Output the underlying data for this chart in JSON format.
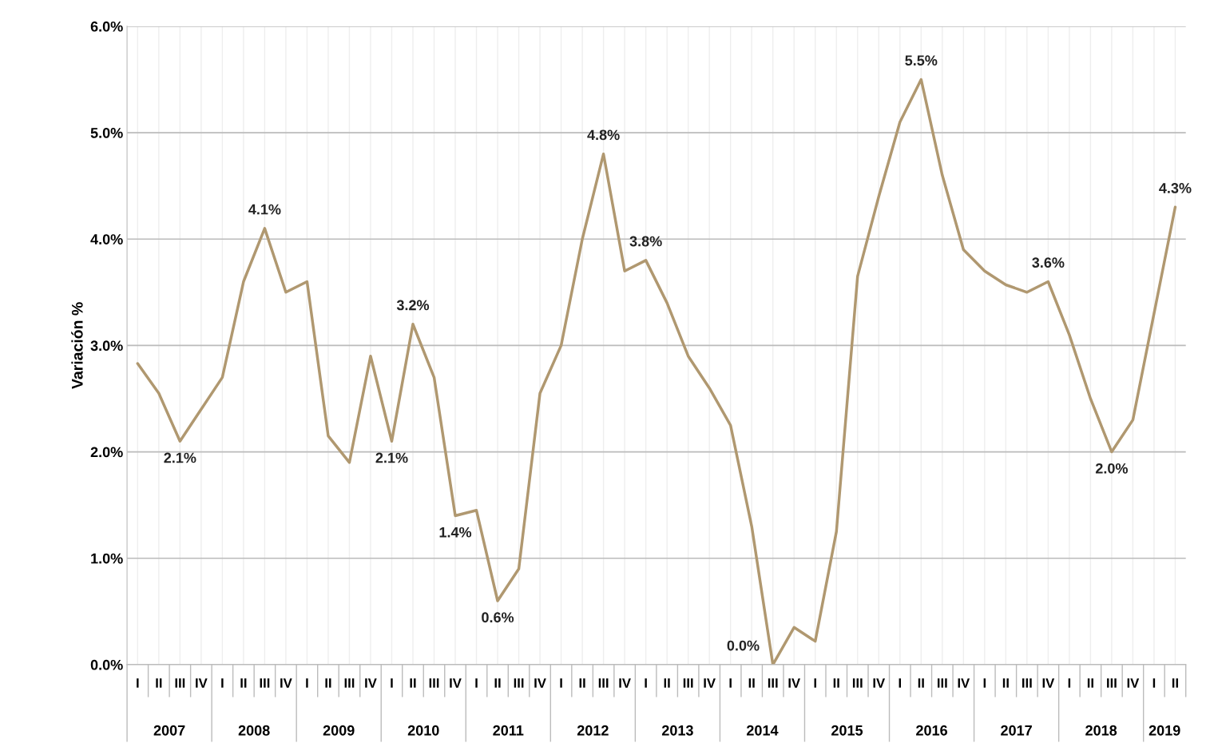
{
  "chart_data": {
    "type": "line",
    "ylabel": "Variación %",
    "categories": [
      "I",
      "II",
      "III",
      "IV",
      "I",
      "II",
      "III",
      "IV",
      "I",
      "II",
      "III",
      "IV",
      "I",
      "II",
      "III",
      "IV",
      "I",
      "II",
      "III",
      "IV",
      "I",
      "II",
      "III",
      "IV",
      "I",
      "II",
      "III",
      "IV",
      "I",
      "II",
      "III",
      "IV",
      "I",
      "II",
      "III",
      "IV",
      "I",
      "II",
      "III",
      "IV",
      "I",
      "II",
      "III",
      "IV",
      "I",
      "II",
      "III",
      "IV",
      "I",
      "II"
    ],
    "series": [
      {
        "color": "#b09870",
        "values": [
          2.83,
          2.55,
          2.1,
          2.4,
          2.7,
          3.6,
          4.1,
          3.5,
          3.6,
          2.15,
          1.9,
          2.9,
          2.1,
          3.2,
          2.7,
          1.4,
          1.45,
          0.6,
          0.9,
          2.55,
          3.0,
          4.0,
          4.8,
          3.7,
          3.8,
          3.4,
          2.9,
          2.6,
          2.25,
          1.3,
          0.0,
          0.35,
          0.22,
          1.25,
          3.65,
          4.4,
          5.1,
          5.5,
          4.6,
          3.9,
          3.7,
          3.57,
          3.5,
          3.6,
          3.1,
          2.5,
          2.0,
          2.3,
          3.3,
          4.3
        ],
        "value_labels": [
          null,
          null,
          "2.1%",
          null,
          null,
          null,
          "4.1%",
          null,
          null,
          null,
          null,
          null,
          "2.1%",
          "3.2%",
          null,
          "1.4%",
          null,
          "0.6%",
          null,
          null,
          null,
          null,
          "4.8%",
          null,
          "3.8%",
          null,
          null,
          null,
          null,
          null,
          "0.0%",
          null,
          null,
          null,
          null,
          null,
          null,
          "5.5%",
          null,
          null,
          null,
          null,
          null,
          "3.6%",
          null,
          null,
          "2.0%",
          null,
          null,
          "4.3%"
        ]
      }
    ],
    "annotations": [
      "2007",
      "2008",
      "2009",
      "2010",
      "2011",
      "2012",
      "2013",
      "2014",
      "2015",
      "2016",
      "2017",
      "2018",
      "2019"
    ],
    "ylim": [
      0,
      6
    ],
    "yticks": [
      {
        "value": 0,
        "label": "0.0%"
      },
      {
        "value": 1,
        "label": "1.0%"
      },
      {
        "value": 2,
        "label": "2.0%"
      },
      {
        "value": 3,
        "label": "3.0%"
      },
      {
        "value": 4,
        "label": "4.0%"
      },
      {
        "value": 5,
        "label": "5.0%"
      },
      {
        "value": 6,
        "label": "6.0%"
      }
    ],
    "grid": true,
    "marker": "none",
    "line_style": "solid"
  }
}
